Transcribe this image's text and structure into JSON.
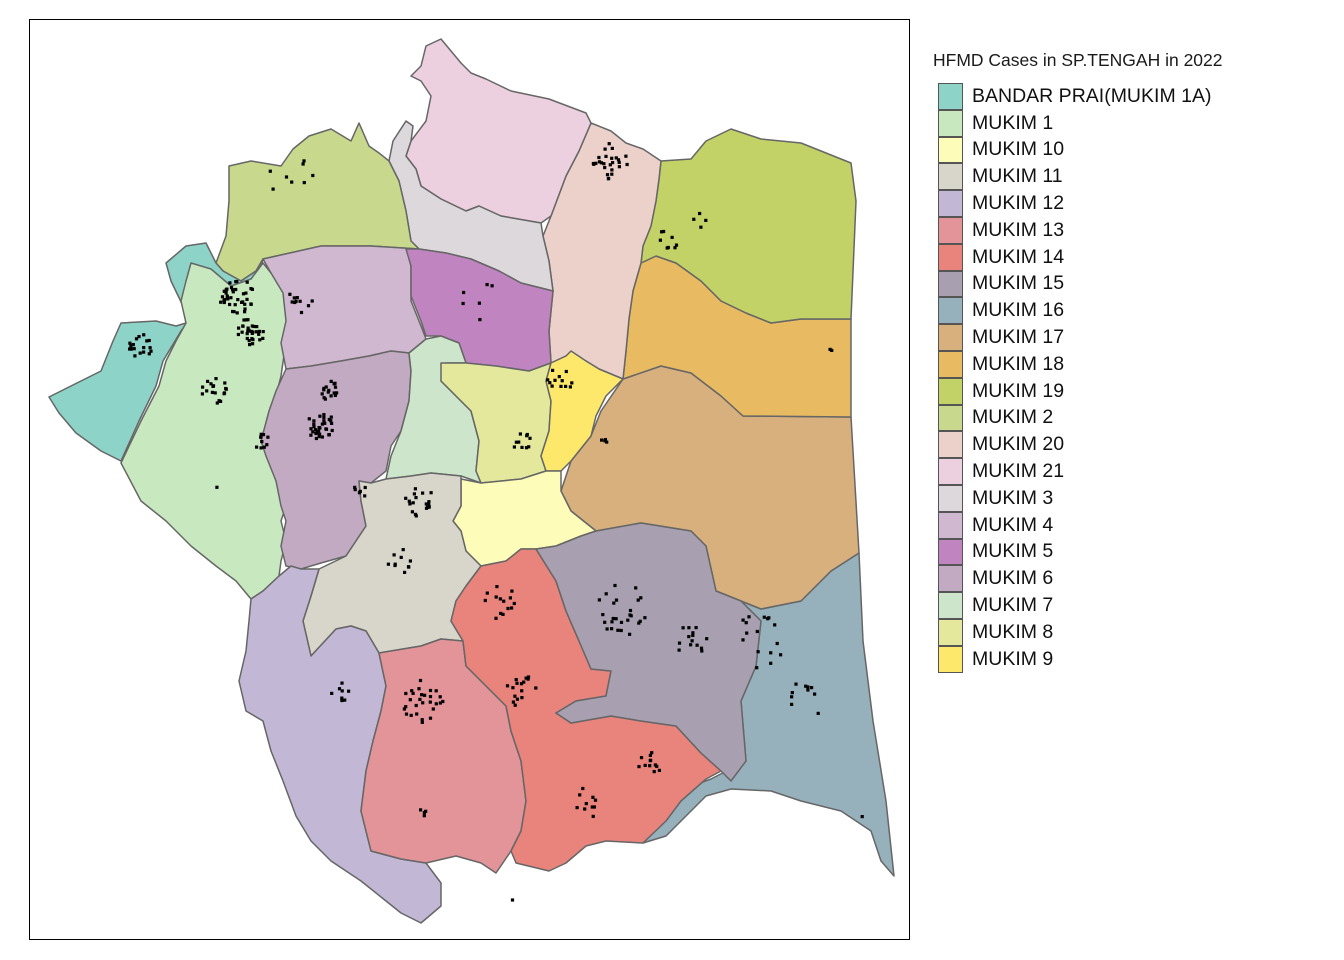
{
  "legend": {
    "title": "HFMD Cases in SP.TENGAH in 2022",
    "items": [
      {
        "label": "BANDAR PRAI(MUKIM 1A)",
        "color": "#8dd3c7"
      },
      {
        "label": "MUKIM 1",
        "color": "#c8e8c0"
      },
      {
        "label": "MUKIM 10",
        "color": "#fdfcb8"
      },
      {
        "label": "MUKIM 11",
        "color": "#d8d6ca"
      },
      {
        "label": "MUKIM 12",
        "color": "#c2b7d5"
      },
      {
        "label": "MUKIM 13",
        "color": "#e29498"
      },
      {
        "label": "MUKIM 14",
        "color": "#e8847c"
      },
      {
        "label": "MUKIM 15",
        "color": "#a8a0b0"
      },
      {
        "label": "MUKIM 16",
        "color": "#96b0bc"
      },
      {
        "label": "MUKIM 17",
        "color": "#d8b07e"
      },
      {
        "label": "MUKIM 18",
        "color": "#e8bb62"
      },
      {
        "label": "MUKIM 19",
        "color": "#c2d266"
      },
      {
        "label": "MUKIM 2",
        "color": "#c8d98e"
      },
      {
        "label": "MUKIM 20",
        "color": "#ecd0ca"
      },
      {
        "label": "MUKIM 21",
        "color": "#ecd0e0"
      },
      {
        "label": "MUKIM 3",
        "color": "#dcd8dc"
      },
      {
        "label": "MUKIM 4",
        "color": "#cfb8d0"
      },
      {
        "label": "MUKIM 5",
        "color": "#c084c0"
      },
      {
        "label": "MUKIM 6",
        "color": "#c2aac2"
      },
      {
        "label": "MUKIM 7",
        "color": "#cde5ca"
      },
      {
        "label": "MUKIM 8",
        "color": "#e4e89c"
      },
      {
        "label": "MUKIM 9",
        "color": "#fee86c"
      }
    ]
  }
}
